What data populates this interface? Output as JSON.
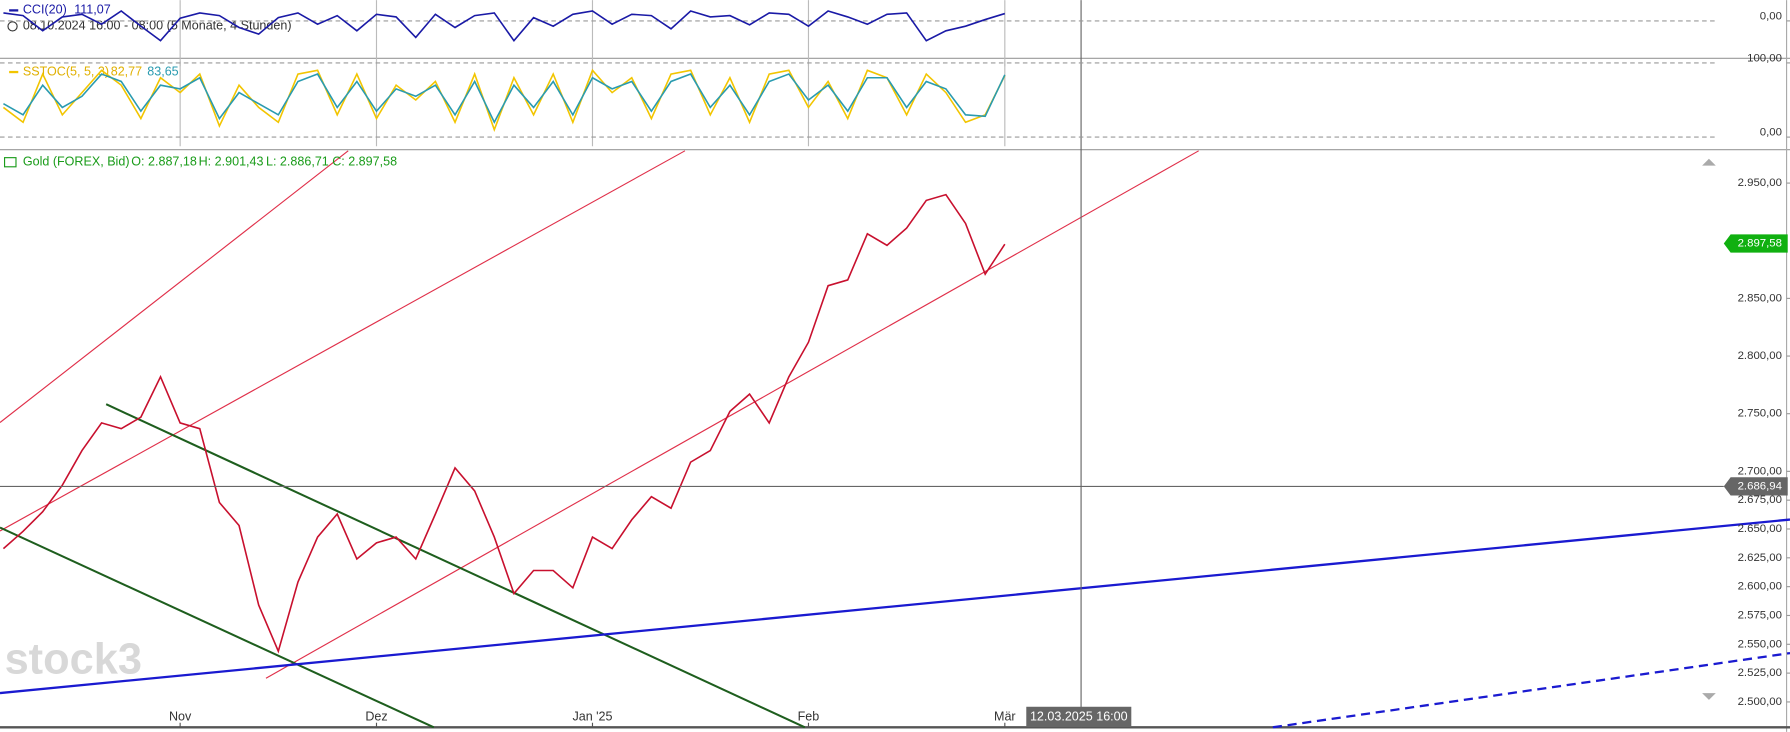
{
  "watermark": "stock3",
  "chart_data": [
    {
      "type": "line",
      "title": "CCI(20)",
      "value_label": "111,07",
      "date_range": "08.10.2024 16:00 - 08:00",
      "period": "(5 Monate, 4 Stunden)",
      "color": "#1a1aa6",
      "ylim": [
        -550,
        280
      ],
      "yticks": [
        {
          "value": 0,
          "label": "0,00"
        }
      ],
      "grid": true,
      "values": [
        120,
        80,
        -150,
        60,
        100,
        -50,
        150,
        -80,
        -300,
        40,
        120,
        80,
        -100,
        -200,
        50,
        120,
        -50,
        80,
        -150,
        100,
        60,
        -250,
        100,
        -100,
        80,
        120,
        -300,
        50,
        -80,
        100,
        150,
        -50,
        100,
        80,
        -120,
        150,
        60,
        80,
        -60,
        120,
        100,
        -80,
        150,
        60,
        -50,
        100,
        120,
        -300,
        -150,
        -80,
        20,
        111
      ]
    },
    {
      "type": "line",
      "title": "SSTOC(5, 5, 3)",
      "ylim": [
        0,
        100
      ],
      "yticks": [
        {
          "value": 0,
          "label": "0,00"
        },
        {
          "value": 100,
          "label": "100,00"
        }
      ],
      "grid": true,
      "series": [
        {
          "color": "#f2c500",
          "value_label": "82,77",
          "values": [
            40,
            20,
            85,
            30,
            60,
            90,
            70,
            25,
            80,
            60,
            85,
            15,
            70,
            40,
            20,
            85,
            90,
            30,
            85,
            25,
            70,
            50,
            75,
            20,
            85,
            10,
            80,
            30,
            85,
            20,
            90,
            60,
            80,
            25,
            85,
            90,
            30,
            80,
            20,
            85,
            90,
            40,
            75,
            25,
            90,
            80,
            30,
            85,
            60,
            20,
            30,
            83
          ]
        },
        {
          "color": "#2a9bb0",
          "value_label": "83,65",
          "values": [
            45,
            30,
            70,
            40,
            55,
            85,
            75,
            35,
            70,
            65,
            80,
            25,
            60,
            45,
            30,
            75,
            85,
            40,
            75,
            35,
            65,
            55,
            70,
            30,
            75,
            20,
            70,
            40,
            75,
            30,
            80,
            65,
            75,
            35,
            75,
            85,
            40,
            70,
            30,
            75,
            85,
            50,
            70,
            35,
            80,
            80,
            40,
            75,
            65,
            30,
            28,
            84
          ]
        }
      ]
    },
    {
      "type": "line",
      "title": "Gold (FOREX, Bid)",
      "ohlc_labels": [
        "O: 2.887,18",
        "H: 2.901,43",
        "L: 2.886,71",
        "C: 2.897,58"
      ],
      "color": "#c8102e",
      "ylim": [
        2478,
        2978
      ],
      "grid": false,
      "yticks": [
        {
          "value": 2500,
          "label": "2.500,00"
        },
        {
          "value": 2525,
          "label": "2.525,00"
        },
        {
          "value": 2550,
          "label": "2.550,00"
        },
        {
          "value": 2575,
          "label": "2.575,00"
        },
        {
          "value": 2600,
          "label": "2.600,00"
        },
        {
          "value": 2625,
          "label": "2.625,00"
        },
        {
          "value": 2650,
          "label": "2.650,00"
        },
        {
          "value": 2675,
          "label": "2.675,00"
        },
        {
          "value": 2700,
          "label": "2.700,00"
        },
        {
          "value": 2750,
          "label": "2.750,00"
        },
        {
          "value": 2800,
          "label": "2.800,00"
        },
        {
          "value": 2850,
          "label": "2.850,00"
        },
        {
          "value": 2950,
          "label": "2.950,00"
        }
      ],
      "last_price": 2897.58,
      "last_price_label": "2.897,58",
      "crosshair_price": 2686.94,
      "crosshair_price_label": "2.686,94",
      "crosshair_time_label": "12.03.2025 16:00",
      "categories": [
        null,
        null,
        null,
        null,
        null,
        null,
        null,
        null,
        null,
        "Nov",
        null,
        null,
        null,
        null,
        null,
        null,
        null,
        null,
        null,
        "Dez",
        null,
        null,
        null,
        null,
        null,
        null,
        null,
        null,
        null,
        null,
        "Jan '25",
        null,
        null,
        null,
        null,
        null,
        null,
        null,
        null,
        null,
        null,
        "Feb",
        null,
        null,
        null,
        null,
        null,
        null,
        null,
        null,
        null,
        "Mär"
      ],
      "values": [
        2633,
        2648,
        2665,
        2688,
        2718,
        2742,
        2737,
        2747,
        2782,
        2742,
        2737,
        2673,
        2653,
        2584,
        2544,
        2604,
        2643,
        2663,
        2624,
        2638,
        2643,
        2624,
        2663,
        2703,
        2683,
        2643,
        2594,
        2614,
        2614,
        2599,
        2643,
        2633,
        2658,
        2678,
        2668,
        2708,
        2718,
        2752,
        2767,
        2742,
        2782,
        2812,
        2861,
        2866,
        2906,
        2896,
        2911,
        2935,
        2940,
        2915,
        2871,
        2897
      ]
    }
  ]
}
